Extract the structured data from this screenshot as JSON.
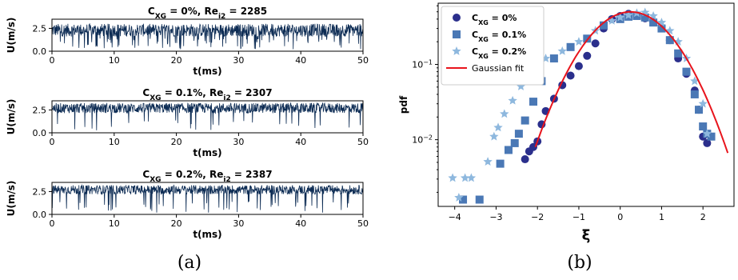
{
  "chart_data": [
    {
      "type": "line",
      "panel": "(a)",
      "subplots": [
        {
          "title": {
            "c": "C",
            "c_sub": "XG",
            "c_val": " = 0%, ",
            "re": "Re",
            "re_sub": "i2",
            "re_val": " = 2285"
          },
          "xlabel": "t(ms)",
          "ylabel": "U(m/s)",
          "xlim": [
            0,
            50
          ],
          "ylim": [
            0,
            3.5
          ],
          "xticks": [
            "0",
            "10",
            "20",
            "30",
            "40",
            "50"
          ],
          "yticks": [
            "0.0",
            "2.5"
          ],
          "signal": {
            "mean": 2.3,
            "fluct": 0.7,
            "dip_rate": 0.1
          },
          "color": "#0d2c54"
        },
        {
          "title": {
            "c": "C",
            "c_sub": "XG",
            "c_val": " = 0.1%, ",
            "re": "Re",
            "re_sub": "i2",
            "re_val": " = 2307"
          },
          "xlabel": "t(ms)",
          "ylabel": "U(m/s)",
          "xlim": [
            0,
            50
          ],
          "ylim": [
            0,
            3.5
          ],
          "xticks": [
            "0",
            "10",
            "20",
            "30",
            "40",
            "50"
          ],
          "yticks": [
            "0.0",
            "2.5"
          ],
          "signal": {
            "mean": 2.7,
            "fluct": 0.55,
            "dip_rate": 0.05
          },
          "color": "#0d2c54"
        },
        {
          "title": {
            "c": "C",
            "c_sub": "XG",
            "c_val": " = 0.2%, ",
            "re": "Re",
            "re_sub": "i2",
            "re_val": " = 2387"
          },
          "xlabel": "t(ms)",
          "ylabel": "U(m/s)",
          "xlim": [
            0,
            50
          ],
          "ylim": [
            0,
            3.5
          ],
          "xticks": [
            "0",
            "10",
            "20",
            "30",
            "40",
            "50"
          ],
          "yticks": [
            "0.0",
            "2.5"
          ],
          "signal": {
            "mean": 2.7,
            "fluct": 0.5,
            "dip_rate": 0.04
          },
          "color": "#0d2c54"
        }
      ]
    },
    {
      "type": "scatter",
      "panel": "(b)",
      "xlabel": "ξ",
      "ylabel": "pdf",
      "xlim": [
        -4.4,
        2.75
      ],
      "ylim": [
        0.0013,
        0.65
      ],
      "yscale": "log",
      "xticks": [
        "−4",
        "−3",
        "−2",
        "−1",
        "0",
        "1",
        "2"
      ],
      "yticks": [
        {
          "value": 0.1,
          "base": "10",
          "exp": "−1"
        },
        {
          "value": 0.01,
          "base": "10",
          "exp": "−2"
        }
      ],
      "legend_position": "top-left",
      "series": [
        {
          "name": {
            "c": "C",
            "sub": "XG",
            "val": " = 0%"
          },
          "marker": "circle",
          "color": "#2b2f8c",
          "x": [
            -2.3,
            -2.2,
            -2.1,
            -2.0,
            -1.9,
            -1.8,
            -1.6,
            -1.4,
            -1.2,
            -1.0,
            -0.8,
            -0.6,
            -0.4,
            -0.2,
            0.0,
            0.2,
            0.4,
            0.6,
            0.8,
            1.0,
            1.2,
            1.4,
            1.6,
            1.8,
            1.9,
            2.0,
            2.1
          ],
          "y": [
            0.0055,
            0.007,
            0.008,
            0.0095,
            0.016,
            0.024,
            0.035,
            0.053,
            0.071,
            0.095,
            0.13,
            0.19,
            0.3,
            0.4,
            0.44,
            0.47,
            0.45,
            0.41,
            0.37,
            0.31,
            0.21,
            0.12,
            0.075,
            0.045,
            0.025,
            0.011,
            0.009
          ]
        },
        {
          "name": {
            "c": "C",
            "sub": "XG",
            "val": " = 0.1%"
          },
          "marker": "square",
          "color": "#4a78b5",
          "x": [
            -3.8,
            -3.4,
            -2.9,
            -2.7,
            -2.55,
            -2.45,
            -2.3,
            -2.1,
            -1.9,
            -1.6,
            -1.2,
            -0.8,
            -0.4,
            0.0,
            0.2,
            0.4,
            0.6,
            0.8,
            1.0,
            1.2,
            1.4,
            1.6,
            1.8,
            1.9,
            2.0,
            2.1,
            2.2
          ],
          "y": [
            0.0016,
            0.0016,
            0.0048,
            0.0073,
            0.009,
            0.012,
            0.018,
            0.032,
            0.06,
            0.12,
            0.17,
            0.22,
            0.33,
            0.4,
            0.43,
            0.44,
            0.42,
            0.36,
            0.3,
            0.21,
            0.14,
            0.08,
            0.04,
            0.025,
            0.015,
            0.012,
            0.011
          ]
        },
        {
          "name": {
            "c": "C",
            "sub": "XG",
            "val": " = 0.2%"
          },
          "marker": "star",
          "color": "#8eb8de",
          "x": [
            -4.05,
            -3.9,
            -3.75,
            -3.6,
            -3.2,
            -3.05,
            -2.95,
            -2.8,
            -2.6,
            -2.4,
            -2.2,
            -2.0,
            -1.8,
            -1.4,
            -1.0,
            -0.6,
            -0.2,
            0.0,
            0.2,
            0.4,
            0.6,
            0.8,
            1.0,
            1.2,
            1.4,
            1.6,
            1.8,
            2.0,
            2.1
          ],
          "y": [
            0.0031,
            0.0017,
            0.0031,
            0.0031,
            0.0051,
            0.011,
            0.0145,
            0.022,
            0.033,
            0.051,
            0.068,
            0.1,
            0.12,
            0.15,
            0.2,
            0.28,
            0.38,
            0.42,
            0.45,
            0.48,
            0.49,
            0.44,
            0.36,
            0.28,
            0.2,
            0.12,
            0.06,
            0.03,
            0.012
          ]
        },
        {
          "name": {
            "c": "Gaussian fit",
            "sub": "",
            "val": ""
          },
          "marker": "line",
          "color": "#e8141c",
          "fit": {
            "mu": 0.25,
            "sigma": 0.8,
            "xmin": -2.05,
            "xmax": 2.6
          }
        }
      ]
    }
  ],
  "captions": [
    "(a)",
    "(b)"
  ]
}
